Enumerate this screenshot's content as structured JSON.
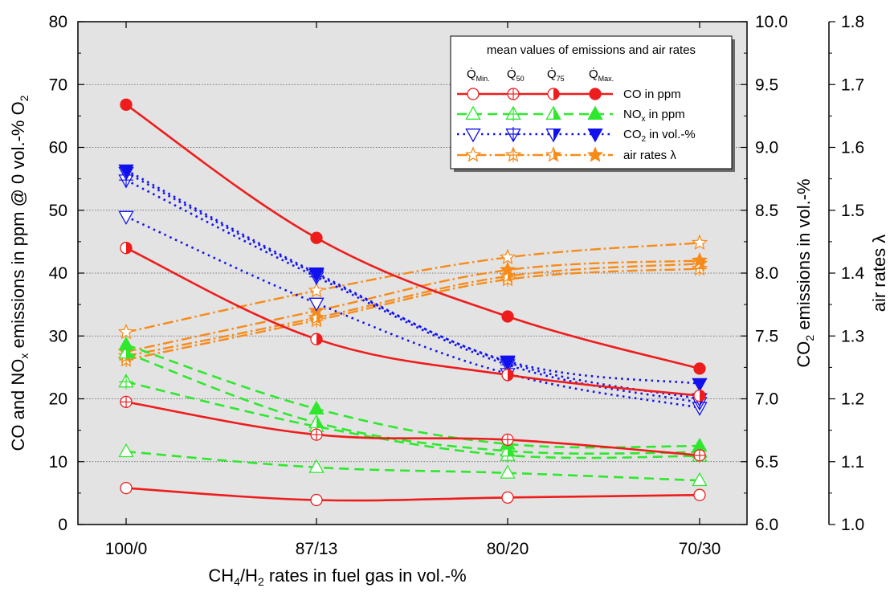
{
  "chart_data": {
    "type": "line",
    "xlabel": "CH4/H2 rates in fuel gas in vol.-%",
    "categories": [
      "100/0",
      "87/13",
      "80/20",
      "70/30"
    ],
    "axes": {
      "left": {
        "label": "CO and NOx emissions in ppm @ 0 vol.-% O2",
        "range": [
          0,
          80
        ],
        "ticks": [
          "0",
          "10",
          "20",
          "30",
          "40",
          "50",
          "60",
          "70",
          "80"
        ]
      },
      "right1": {
        "label": "CO2 emissions in vol.-%",
        "range": [
          6.0,
          10.0
        ],
        "ticks": [
          "6.0",
          "6.5",
          "7.0",
          "7.5",
          "8.0",
          "8.5",
          "9.0",
          "9.5",
          "10.0"
        ]
      },
      "right2": {
        "label": "air rates λ",
        "range": [
          1.0,
          1.8
        ],
        "ticks": [
          "1.0",
          "1.1",
          "1.2",
          "1.3",
          "1.4",
          "1.5",
          "1.6",
          "1.7",
          "1.8"
        ]
      }
    },
    "grid": "horizontal dotted",
    "background": "#e3e3e3",
    "legend": {
      "title": "mean values of emissions and air rates",
      "placement": "top-right",
      "columns": [
        "Q̇Min.",
        "Q̇50",
        "Q̇75",
        "Q̇Max."
      ],
      "rows": [
        {
          "label": "CO in ppm"
        },
        {
          "label": "NOx in ppm"
        },
        {
          "label": "CO2 in vol.-%"
        },
        {
          "label": "air rates λ"
        }
      ]
    },
    "colors": {
      "co": "#ee1c1c",
      "nox": "#2ee82e",
      "co2": "#1111ee",
      "air": "#f78b1a"
    },
    "series": [
      {
        "group": "CO",
        "level": "Min",
        "axis": "left",
        "values": [
          5.8,
          3.9,
          4.3,
          4.7
        ]
      },
      {
        "group": "CO",
        "level": "50",
        "axis": "left",
        "values": [
          19.5,
          14.3,
          13.5,
          11.0
        ]
      },
      {
        "group": "CO",
        "level": "75",
        "axis": "left",
        "values": [
          44.0,
          29.5,
          23.8,
          20.5
        ]
      },
      {
        "group": "CO",
        "level": "Max",
        "axis": "left",
        "values": [
          66.8,
          45.6,
          33.1,
          24.8
        ]
      },
      {
        "group": "NOx",
        "level": "Min",
        "axis": "left",
        "values": [
          11.6,
          9.1,
          8.2,
          7.0
        ]
      },
      {
        "group": "NOx",
        "level": "50",
        "axis": "left",
        "values": [
          22.7,
          15.6,
          11.0,
          10.9
        ]
      },
      {
        "group": "NOx",
        "level": "75",
        "axis": "left",
        "values": [
          27.3,
          16.2,
          11.7,
          11.5
        ]
      },
      {
        "group": "NOx",
        "level": "Max",
        "axis": "left",
        "values": [
          28.6,
          18.4,
          12.8,
          12.5
        ]
      },
      {
        "group": "CO2",
        "level": "Min",
        "axis": "right1",
        "values": [
          8.45,
          7.76,
          7.2,
          6.93
        ]
      },
      {
        "group": "CO2",
        "level": "50",
        "axis": "right1",
        "values": [
          8.74,
          7.97,
          7.27,
          6.97
        ]
      },
      {
        "group": "CO2",
        "level": "75",
        "axis": "right1",
        "values": [
          8.8,
          7.99,
          7.29,
          7.0
        ]
      },
      {
        "group": "CO2",
        "level": "Max",
        "axis": "right1",
        "values": [
          8.82,
          8.0,
          7.3,
          7.12
        ]
      },
      {
        "group": "air rates",
        "level": "Min",
        "axis": "right2",
        "values": [
          1.306,
          1.372,
          1.425,
          1.448
        ]
      },
      {
        "group": "air rates",
        "level": "50",
        "axis": "right2",
        "values": [
          1.262,
          1.325,
          1.39,
          1.407
        ]
      },
      {
        "group": "air rates",
        "level": "75",
        "axis": "right2",
        "values": [
          1.268,
          1.329,
          1.395,
          1.415
        ]
      },
      {
        "group": "air rates",
        "level": "Max",
        "axis": "right2",
        "values": [
          1.275,
          1.34,
          1.405,
          1.42
        ]
      }
    ]
  }
}
